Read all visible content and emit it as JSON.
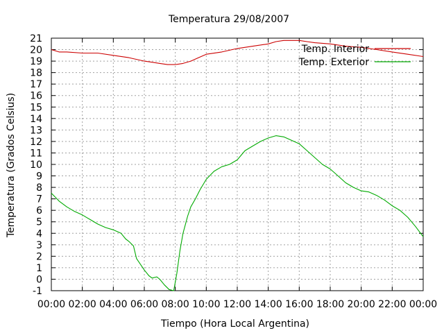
{
  "chart_data": {
    "type": "line",
    "title": "Temperatura 29/08/2007",
    "xlabel": "Tiempo (Hora Local Argentina)",
    "ylabel": "Temperatura (Grados Celsius)",
    "xlim": [
      0,
      24
    ],
    "ylim": [
      -1,
      21
    ],
    "grid": true,
    "legend_position": "top-right",
    "x_tick_labels": [
      "00:00",
      "02:00",
      "04:00",
      "06:00",
      "08:00",
      "10:00",
      "12:00",
      "14:00",
      "16:00",
      "18:00",
      "20:00",
      "22:00",
      "00:00"
    ],
    "y_tick_labels": [
      "-1",
      "0",
      "1",
      "2",
      "3",
      "4",
      "5",
      "6",
      "7",
      "8",
      "9",
      "10",
      "11",
      "12",
      "13",
      "14",
      "15",
      "16",
      "17",
      "18",
      "19",
      "20",
      "21"
    ],
    "series": [
      {
        "name": "Temp. Interior",
        "color": "#cc0000",
        "x": [
          0,
          0.5,
          1,
          2,
          3,
          4,
          5,
          6,
          6.5,
          7,
          7.5,
          8,
          8.5,
          9,
          9.5,
          10,
          11,
          12,
          13,
          14,
          14.5,
          15,
          15.5,
          16,
          16.5,
          17,
          18,
          19,
          20,
          21,
          22,
          23,
          24
        ],
        "values": [
          20.0,
          19.8,
          19.8,
          19.7,
          19.7,
          19.5,
          19.3,
          19.0,
          18.9,
          18.8,
          18.7,
          18.7,
          18.8,
          19.0,
          19.3,
          19.6,
          19.8,
          20.1,
          20.3,
          20.5,
          20.7,
          20.8,
          20.8,
          20.8,
          20.7,
          20.6,
          20.5,
          20.3,
          20.2,
          20.0,
          19.8,
          19.6,
          19.4
        ]
      },
      {
        "name": "Temp. Exterior",
        "color": "#00aa00",
        "x": [
          0,
          0.5,
          1,
          1.5,
          2,
          2.5,
          3,
          3.5,
          4,
          4.5,
          4.8,
          5,
          5.3,
          5.5,
          5.8,
          6,
          6.3,
          6.5,
          6.8,
          7,
          7.3,
          7.6,
          7.9,
          8.1,
          8.3,
          8.5,
          8.8,
          9,
          9.3,
          9.6,
          10,
          10.5,
          11,
          11.5,
          12,
          12.5,
          13,
          13.5,
          14,
          14.5,
          15,
          15.5,
          16,
          16.5,
          17,
          17.5,
          18,
          18.5,
          19,
          19.5,
          20,
          20.5,
          21,
          21.5,
          22,
          22.5,
          23,
          23.5,
          24
        ],
        "values": [
          7.5,
          6.8,
          6.3,
          5.9,
          5.6,
          5.2,
          4.8,
          4.5,
          4.3,
          4.0,
          3.5,
          3.3,
          2.9,
          1.8,
          1.2,
          0.8,
          0.3,
          0.1,
          0.2,
          0.0,
          -0.5,
          -0.9,
          -1.0,
          0.5,
          2.5,
          4.0,
          5.5,
          6.3,
          7.0,
          7.8,
          8.7,
          9.4,
          9.8,
          10.0,
          10.4,
          11.2,
          11.6,
          12.0,
          12.3,
          12.5,
          12.4,
          12.1,
          11.8,
          11.2,
          10.6,
          10.0,
          9.6,
          9.0,
          8.4,
          8.0,
          7.7,
          7.6,
          7.3,
          6.9,
          6.4,
          6.0,
          5.4,
          4.6,
          3.7
        ]
      }
    ]
  }
}
